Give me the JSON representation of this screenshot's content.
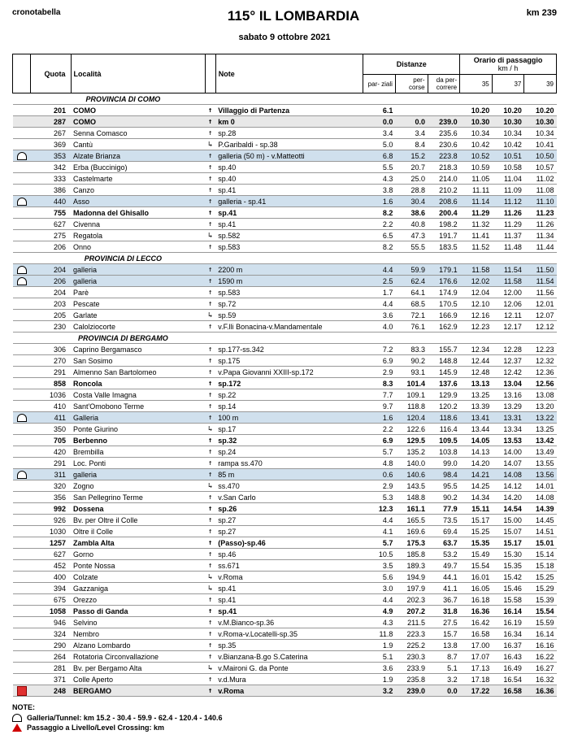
{
  "header": {
    "crono": "cronotabella",
    "title": "115° IL LOMBARDIA",
    "km": "km 239",
    "date": "sabato 9 ottobre 2021"
  },
  "columns": {
    "quota": "Quota",
    "localita": "Località",
    "note": "Note",
    "distanze": "Distanze",
    "orario": "Orario di passaggio",
    "parziali": "par-\nziali",
    "percorse": "per-\ncorse",
    "dapercorrere": "da per-\ncorrere",
    "kmh": "km / h",
    "s35": "35",
    "s37": "37",
    "s39": "39"
  },
  "notes": {
    "title": "NOTE:",
    "tunnel": "Galleria/Tunnel:  km 15.2 - 30.4 - 59.9 - 62.4 - 120.4 - 140.6",
    "level": "Passaggio a Livello/Level Crossing:  km"
  },
  "rows": [
    {
      "type": "section",
      "label": "PROVINCIA DI COMO"
    },
    {
      "bold": true,
      "quota": "201",
      "loc": "COMO",
      "dir": "↑",
      "note": "Villaggio di Partenza",
      "d1": "6.1",
      "d2": "",
      "d3": "",
      "t1": "10.20",
      "t2": "10.20",
      "t3": "10.20"
    },
    {
      "bold": true,
      "gallery": false,
      "bg": "#e8e8e8",
      "quota": "287",
      "loc": "COMO",
      "dir": "↑",
      "note": "km 0",
      "d1": "0.0",
      "d2": "0.0",
      "d3": "239.0",
      "t1": "10.30",
      "t2": "10.30",
      "t3": "10.30"
    },
    {
      "quota": "267",
      "loc": "Senna Comasco",
      "dir": "↑",
      "note": "sp.28",
      "d1": "3.4",
      "d2": "3.4",
      "d3": "235.6",
      "t1": "10.34",
      "t2": "10.34",
      "t3": "10.34"
    },
    {
      "quota": "369",
      "loc": "Cantù",
      "dir": "↳",
      "note": "P.Garibaldi - sp.38",
      "d1": "5.0",
      "d2": "8.4",
      "d3": "230.6",
      "t1": "10.42",
      "t2": "10.42",
      "t3": "10.41"
    },
    {
      "gallery": true,
      "icon": "tunnel",
      "quota": "353",
      "loc": "Alzate Brianza",
      "dir": "↑",
      "note": "galleria (50 m) - v.Matteotti",
      "d1": "6.8",
      "d2": "15.2",
      "d3": "223.8",
      "t1": "10.52",
      "t2": "10.51",
      "t3": "10.50"
    },
    {
      "quota": "342",
      "loc": "Erba (Buccinigo)",
      "dir": "↑",
      "note": "sp.40",
      "d1": "5.5",
      "d2": "20.7",
      "d3": "218.3",
      "t1": "10.59",
      "t2": "10.58",
      "t3": "10.57"
    },
    {
      "quota": "333",
      "loc": "Castelmarte",
      "dir": "↑",
      "note": "sp.40",
      "d1": "4.3",
      "d2": "25.0",
      "d3": "214.0",
      "t1": "11.05",
      "t2": "11.04",
      "t3": "11.02"
    },
    {
      "quota": "386",
      "loc": "Canzo",
      "dir": "↑",
      "note": "sp.41",
      "d1": "3.8",
      "d2": "28.8",
      "d3": "210.2",
      "t1": "11.11",
      "t2": "11.09",
      "t3": "11.08"
    },
    {
      "gallery": true,
      "icon": "tunnel",
      "quota": "440",
      "loc": "Asso",
      "dir": "↑",
      "note": "galleria - sp.41",
      "d1": "1.6",
      "d2": "30.4",
      "d3": "208.6",
      "t1": "11.14",
      "t2": "11.12",
      "t3": "11.10"
    },
    {
      "bold": true,
      "quota": "755",
      "loc": "Madonna del Ghisallo",
      "dir": "↑",
      "note": "sp.41",
      "d1": "8.2",
      "d2": "38.6",
      "d3": "200.4",
      "t1": "11.29",
      "t2": "11.26",
      "t3": "11.23"
    },
    {
      "quota": "627",
      "loc": "Civenna",
      "dir": "↑",
      "note": "sp.41",
      "d1": "2.2",
      "d2": "40.8",
      "d3": "198.2",
      "t1": "11.32",
      "t2": "11.29",
      "t3": "11.26"
    },
    {
      "quota": "275",
      "loc": "Regatola",
      "dir": "↳",
      "note": "sp.582",
      "d1": "6.5",
      "d2": "47.3",
      "d3": "191.7",
      "t1": "11.41",
      "t2": "11.37",
      "t3": "11.34"
    },
    {
      "quota": "206",
      "loc": "Onno",
      "dir": "↑",
      "note": "sp.583",
      "d1": "8.2",
      "d2": "55.5",
      "d3": "183.5",
      "t1": "11.52",
      "t2": "11.48",
      "t3": "11.44"
    },
    {
      "type": "section",
      "label": "PROVINCIA DI LECCO"
    },
    {
      "gallery": true,
      "icon": "tunnel",
      "quota": "204",
      "loc": "galleria",
      "dir": "↑",
      "note": "2200 m",
      "d1": "4.4",
      "d2": "59.9",
      "d3": "179.1",
      "t1": "11.58",
      "t2": "11.54",
      "t3": "11.50"
    },
    {
      "gallery": true,
      "icon": "tunnel",
      "quota": "206",
      "loc": "galleria",
      "dir": "↑",
      "note": "1590 m",
      "d1": "2.5",
      "d2": "62.4",
      "d3": "176.6",
      "t1": "12.02",
      "t2": "11.58",
      "t3": "11.54"
    },
    {
      "quota": "204",
      "loc": "Parè",
      "dir": "↑",
      "note": "sp.583",
      "d1": "1.7",
      "d2": "64.1",
      "d3": "174.9",
      "t1": "12.04",
      "t2": "12.00",
      "t3": "11.56"
    },
    {
      "quota": "203",
      "loc": "Pescate",
      "dir": "↑",
      "note": "sp.72",
      "d1": "4.4",
      "d2": "68.5",
      "d3": "170.5",
      "t1": "12.10",
      "t2": "12.06",
      "t3": "12.01"
    },
    {
      "quota": "205",
      "loc": "Garlate",
      "dir": "↳",
      "note": "sp.59",
      "d1": "3.6",
      "d2": "72.1",
      "d3": "166.9",
      "t1": "12.16",
      "t2": "12.11",
      "t3": "12.07"
    },
    {
      "quota": "230",
      "loc": "Calolziocorte",
      "dir": "↑",
      "note": "v.F.lli Bonacina-v.Mandamentale",
      "d1": "4.0",
      "d2": "76.1",
      "d3": "162.9",
      "t1": "12.23",
      "t2": "12.17",
      "t3": "12.12"
    },
    {
      "type": "section",
      "label": "PROVINCIA DI BERGAMO"
    },
    {
      "quota": "306",
      "loc": "Caprino Bergamasco",
      "dir": "↑",
      "note": "sp.177-ss.342",
      "d1": "7.2",
      "d2": "83.3",
      "d3": "155.7",
      "t1": "12.34",
      "t2": "12.28",
      "t3": "12.23"
    },
    {
      "quota": "270",
      "loc": "San Sosimo",
      "dir": "↑",
      "note": "sp.175",
      "d1": "6.9",
      "d2": "90.2",
      "d3": "148.8",
      "t1": "12.44",
      "t2": "12.37",
      "t3": "12.32"
    },
    {
      "quota": "291",
      "loc": "Almenno San Bartolomeo",
      "dir": "↑",
      "note": "v.Papa Giovanni XXIII-sp.172",
      "d1": "2.9",
      "d2": "93.1",
      "d3": "145.9",
      "t1": "12.48",
      "t2": "12.42",
      "t3": "12.36"
    },
    {
      "bold": true,
      "quota": "858",
      "loc": "Roncola",
      "dir": "↑",
      "note": "sp.172",
      "d1": "8.3",
      "d2": "101.4",
      "d3": "137.6",
      "t1": "13.13",
      "t2": "13.04",
      "t3": "12.56"
    },
    {
      "quota": "1036",
      "loc": "Costa Valle Imagna",
      "dir": "↑",
      "note": "sp.22",
      "d1": "7.7",
      "d2": "109.1",
      "d3": "129.9",
      "t1": "13.25",
      "t2": "13.16",
      "t3": "13.08"
    },
    {
      "quota": "410",
      "loc": "Sant'Omobono Terme",
      "dir": "↑",
      "note": "sp.14",
      "d1": "9.7",
      "d2": "118.8",
      "d3": "120.2",
      "t1": "13.39",
      "t2": "13.29",
      "t3": "13.20"
    },
    {
      "gallery": true,
      "icon": "tunnel",
      "quota": "411",
      "loc": "Galleria",
      "dir": "↑",
      "note": "100 m",
      "d1": "1.6",
      "d2": "120.4",
      "d3": "118.6",
      "t1": "13.41",
      "t2": "13.31",
      "t3": "13.22"
    },
    {
      "quota": "350",
      "loc": "Ponte Giurino",
      "dir": "↳",
      "note": "sp.17",
      "d1": "2.2",
      "d2": "122.6",
      "d3": "116.4",
      "t1": "13.44",
      "t2": "13.34",
      "t3": "13.25"
    },
    {
      "bold": true,
      "quota": "705",
      "loc": "Berbenno",
      "dir": "↑",
      "note": "sp.32",
      "d1": "6.9",
      "d2": "129.5",
      "d3": "109.5",
      "t1": "14.05",
      "t2": "13.53",
      "t3": "13.42"
    },
    {
      "quota": "420",
      "loc": "Brembilla",
      "dir": "↑",
      "note": "sp.24",
      "d1": "5.7",
      "d2": "135.2",
      "d3": "103.8",
      "t1": "14.13",
      "t2": "14.00",
      "t3": "13.49"
    },
    {
      "quota": "291",
      "loc": "Loc. Ponti",
      "dir": "↑",
      "note": "rampa ss.470",
      "d1": "4.8",
      "d2": "140.0",
      "d3": "99.0",
      "t1": "14.20",
      "t2": "14.07",
      "t3": "13.55"
    },
    {
      "gallery": true,
      "icon": "tunnel",
      "quota": "311",
      "loc": "galleria",
      "dir": "↑",
      "note": "85 m",
      "d1": "0.6",
      "d2": "140.6",
      "d3": "98.4",
      "t1": "14.21",
      "t2": "14.08",
      "t3": "13.56"
    },
    {
      "quota": "320",
      "loc": "Zogno",
      "dir": "↳",
      "note": "ss.470",
      "d1": "2.9",
      "d2": "143.5",
      "d3": "95.5",
      "t1": "14.25",
      "t2": "14.12",
      "t3": "14.01"
    },
    {
      "quota": "356",
      "loc": "San Pellegrino Terme",
      "dir": "↑",
      "note": "v.San Carlo",
      "d1": "5.3",
      "d2": "148.8",
      "d3": "90.2",
      "t1": "14.34",
      "t2": "14.20",
      "t3": "14.08"
    },
    {
      "bold": true,
      "quota": "992",
      "loc": "Dossena",
      "dir": "↑",
      "note": "sp.26",
      "d1": "12.3",
      "d2": "161.1",
      "d3": "77.9",
      "t1": "15.11",
      "t2": "14.54",
      "t3": "14.39"
    },
    {
      "quota": "926",
      "loc": "Bv. per Oltre il Colle",
      "dir": "↑",
      "note": "sp.27",
      "d1": "4.4",
      "d2": "165.5",
      "d3": "73.5",
      "t1": "15.17",
      "t2": "15.00",
      "t3": "14.45"
    },
    {
      "quota": "1030",
      "loc": "Oltre il Colle",
      "dir": "↑",
      "note": "sp.27",
      "d1": "4.1",
      "d2": "169.6",
      "d3": "69.4",
      "t1": "15.25",
      "t2": "15.07",
      "t3": "14.51"
    },
    {
      "bold": true,
      "quota": "1257",
      "loc": "Zambla Alta",
      "dir": "↑",
      "note": "(Passo)-sp.46",
      "d1": "5.7",
      "d2": "175.3",
      "d3": "63.7",
      "t1": "15.35",
      "t2": "15.17",
      "t3": "15.01"
    },
    {
      "quota": "627",
      "loc": "Gorno",
      "dir": "↑",
      "note": "sp.46",
      "d1": "10.5",
      "d2": "185.8",
      "d3": "53.2",
      "t1": "15.49",
      "t2": "15.30",
      "t3": "15.14"
    },
    {
      "quota": "452",
      "loc": "Ponte Nossa",
      "dir": "↑",
      "note": "ss.671",
      "d1": "3.5",
      "d2": "189.3",
      "d3": "49.7",
      "t1": "15.54",
      "t2": "15.35",
      "t3": "15.18"
    },
    {
      "quota": "400",
      "loc": "Colzate",
      "dir": "↳",
      "note": "v.Roma",
      "d1": "5.6",
      "d2": "194.9",
      "d3": "44.1",
      "t1": "16.01",
      "t2": "15.42",
      "t3": "15.25"
    },
    {
      "quota": "394",
      "loc": "Gazzaniga",
      "dir": "↳",
      "note": "sp.41",
      "d1": "3.0",
      "d2": "197.9",
      "d3": "41.1",
      "t1": "16.05",
      "t2": "15.46",
      "t3": "15.29"
    },
    {
      "quota": "675",
      "loc": "Orezzo",
      "dir": "↑",
      "note": "sp.41",
      "d1": "4.4",
      "d2": "202.3",
      "d3": "36.7",
      "t1": "16.18",
      "t2": "15.58",
      "t3": "15.39"
    },
    {
      "bold": true,
      "quota": "1058",
      "loc": "Passo di Ganda",
      "dir": "↑",
      "note": "sp.41",
      "d1": "4.9",
      "d2": "207.2",
      "d3": "31.8",
      "t1": "16.36",
      "t2": "16.14",
      "t3": "15.54"
    },
    {
      "quota": "946",
      "loc": "Selvino",
      "dir": "↑",
      "note": "v.M.Bianco-sp.36",
      "d1": "4.3",
      "d2": "211.5",
      "d3": "27.5",
      "t1": "16.42",
      "t2": "16.19",
      "t3": "15.59"
    },
    {
      "quota": "324",
      "loc": "Nembro",
      "dir": "↑",
      "note": "v.Roma-v.Locatelli-sp.35",
      "d1": "11.8",
      "d2": "223.3",
      "d3": "15.7",
      "t1": "16.58",
      "t2": "16.34",
      "t3": "16.14"
    },
    {
      "quota": "290",
      "loc": "Alzano Lombardo",
      "dir": "↑",
      "note": "sp.35",
      "d1": "1.9",
      "d2": "225.2",
      "d3": "13.8",
      "t1": "17.00",
      "t2": "16.37",
      "t3": "16.16"
    },
    {
      "quota": "264",
      "loc": "Rotatoria Circonvallazione",
      "dir": "↑",
      "note": "v.Bianzana-B.go S.Caterina",
      "d1": "5.1",
      "d2": "230.3",
      "d3": "8.7",
      "t1": "17.07",
      "t2": "16.43",
      "t3": "16.22"
    },
    {
      "quota": "281",
      "loc": "Bv. per Bergamo Alta",
      "dir": "↳",
      "note": "v.Maironi G. da Ponte",
      "d1": "3.6",
      "d2": "233.9",
      "d3": "5.1",
      "t1": "17.13",
      "t2": "16.49",
      "t3": "16.27"
    },
    {
      "quota": "371",
      "loc": "Colle Aperto",
      "dir": "↑",
      "note": "v.d.Mura",
      "d1": "1.9",
      "d2": "235.8",
      "d3": "3.2",
      "t1": "17.18",
      "t2": "16.54",
      "t3": "16.32"
    },
    {
      "finish": true,
      "bold": true,
      "icon": "finish",
      "quota": "248",
      "loc": "BERGAMO",
      "dir": "↑",
      "note": "v.Roma",
      "d1": "3.2",
      "d2": "239.0",
      "d3": "0.0",
      "t1": "17.22",
      "t2": "16.58",
      "t3": "16.36"
    }
  ]
}
